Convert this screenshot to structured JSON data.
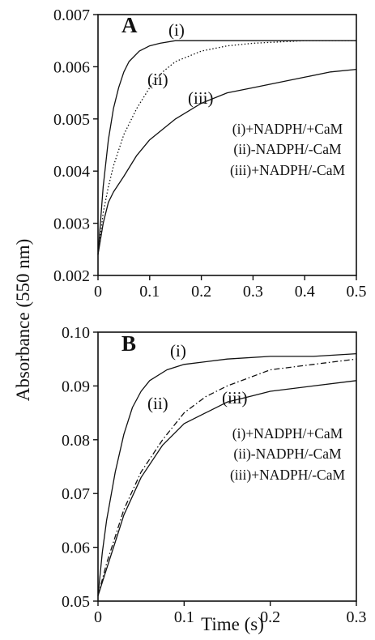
{
  "chart_data": [
    {
      "type": "line",
      "panel": "A",
      "xlim": [
        0,
        0.5
      ],
      "ylim": [
        0.002,
        0.007
      ],
      "xticks": [
        "0",
        "0.1",
        "0.2",
        "0.3",
        "0.4",
        "0.5"
      ],
      "yticks": [
        "0.002",
        "0.003",
        "0.004",
        "0.005",
        "0.006",
        "0.007"
      ],
      "grid": false,
      "legend": [
        "(i)+NADPH/+CaM",
        "(ii)-NADPH/-CaM",
        "(iii)+NADPH/-CaM"
      ],
      "series": [
        {
          "name": "(i)",
          "style": "solid",
          "x": [
            0,
            0.01,
            0.02,
            0.03,
            0.04,
            0.05,
            0.06,
            0.08,
            0.1,
            0.12,
            0.15,
            0.2,
            0.3,
            0.4,
            0.5
          ],
          "y": [
            0.0024,
            0.0037,
            0.0046,
            0.0052,
            0.0056,
            0.0059,
            0.0061,
            0.0063,
            0.0064,
            0.00645,
            0.0065,
            0.0065,
            0.0065,
            0.0065,
            0.0065
          ]
        },
        {
          "name": "(ii)",
          "style": "dotted",
          "x": [
            0,
            0.01,
            0.02,
            0.03,
            0.05,
            0.075,
            0.1,
            0.125,
            0.15,
            0.2,
            0.25,
            0.3,
            0.4,
            0.5
          ],
          "y": [
            0.0024,
            0.0032,
            0.0037,
            0.0041,
            0.0047,
            0.0052,
            0.0056,
            0.0059,
            0.0061,
            0.0063,
            0.0064,
            0.00645,
            0.0065,
            0.0065
          ]
        },
        {
          "name": "(iii)",
          "style": "solid",
          "x": [
            0,
            0.01,
            0.02,
            0.03,
            0.05,
            0.075,
            0.1,
            0.15,
            0.2,
            0.25,
            0.3,
            0.35,
            0.4,
            0.45,
            0.5
          ],
          "y": [
            0.0024,
            0.003,
            0.0034,
            0.0036,
            0.0039,
            0.0043,
            0.0046,
            0.005,
            0.0053,
            0.0055,
            0.0056,
            0.0057,
            0.0058,
            0.0059,
            0.00595
          ]
        }
      ],
      "panel_letter": "A",
      "curve_labels": {
        "i": "(i)",
        "ii": "(ii)",
        "iii": "(iii)"
      },
      "legend_position": "center-right"
    },
    {
      "type": "line",
      "panel": "B",
      "xlim": [
        0,
        0.3
      ],
      "ylim": [
        0.05,
        0.1
      ],
      "xticks": [
        "0",
        "0.1",
        "0.2",
        "0.3"
      ],
      "yticks": [
        "0.05",
        "0.06",
        "0.07",
        "0.08",
        "0.09",
        "0.10"
      ],
      "grid": false,
      "legend": [
        "(i)+NADPH/+CaM",
        "(ii)-NADPH/-CaM",
        "(iii)+NADPH/-CaM"
      ],
      "series": [
        {
          "name": "(i)",
          "style": "solid",
          "x": [
            0,
            0.005,
            0.01,
            0.02,
            0.03,
            0.04,
            0.05,
            0.06,
            0.08,
            0.1,
            0.15,
            0.2,
            0.25,
            0.3
          ],
          "y": [
            0.051,
            0.059,
            0.065,
            0.074,
            0.081,
            0.086,
            0.089,
            0.091,
            0.093,
            0.094,
            0.095,
            0.0955,
            0.0955,
            0.096
          ]
        },
        {
          "name": "(ii)",
          "style": "dashdot",
          "x": [
            0,
            0.01,
            0.02,
            0.03,
            0.05,
            0.075,
            0.1,
            0.125,
            0.15,
            0.2,
            0.25,
            0.3
          ],
          "y": [
            0.051,
            0.057,
            0.062,
            0.067,
            0.074,
            0.08,
            0.085,
            0.088,
            0.09,
            0.093,
            0.094,
            0.095
          ]
        },
        {
          "name": "(iii)",
          "style": "solid",
          "x": [
            0,
            0.01,
            0.02,
            0.03,
            0.05,
            0.075,
            0.1,
            0.125,
            0.15,
            0.175,
            0.2,
            0.25,
            0.3
          ],
          "y": [
            0.051,
            0.056,
            0.061,
            0.066,
            0.073,
            0.079,
            0.083,
            0.085,
            0.087,
            0.088,
            0.089,
            0.09,
            0.091
          ]
        }
      ],
      "panel_letter": "B",
      "curve_labels": {
        "i": "(i)",
        "ii": "(ii)",
        "iii": "(iii)"
      },
      "legend_position": "center-right"
    }
  ],
  "shared_ylabel": "Absorbance (550 nm)",
  "shared_xlabel": "Time (s)"
}
